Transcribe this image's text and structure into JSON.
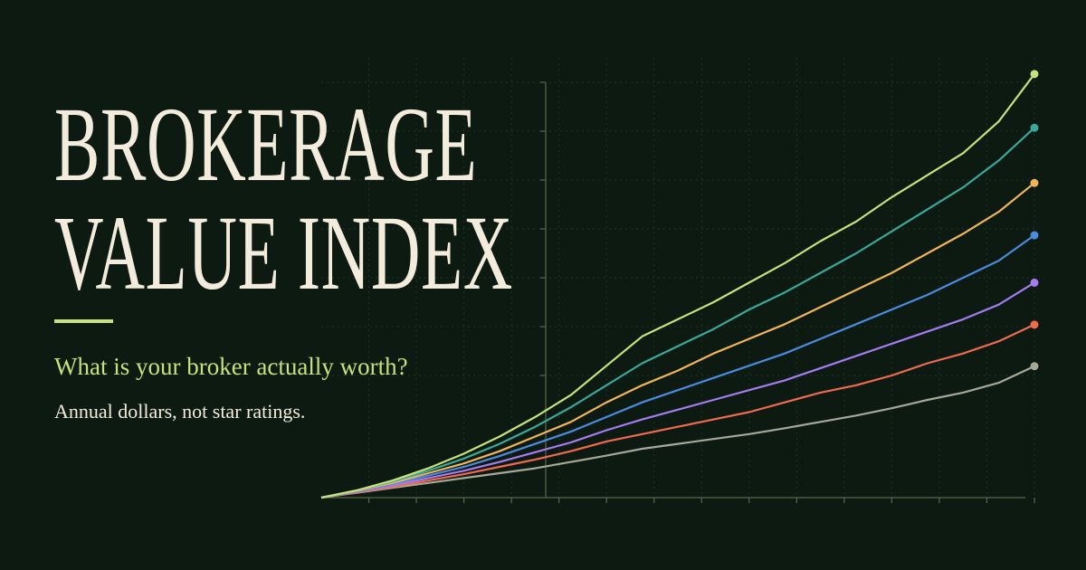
{
  "title": "BROKERAGE VALUE INDEX",
  "subtitle": "What is your broker actually worth?",
  "tagline": "Annual dollars, not star ratings.",
  "chart_data": {
    "type": "line",
    "x": [
      0,
      0.75,
      1.5,
      2.25,
      3,
      3.75,
      4.5,
      5.25,
      6,
      6.75,
      7.5,
      8.25,
      9,
      9.75,
      10.5,
      11.25,
      12,
      12.75,
      13.5,
      14.25,
      15
    ],
    "xlim": [
      0,
      15
    ],
    "xticks": [
      1,
      2,
      3,
      4,
      5,
      6,
      7,
      8,
      9,
      10,
      11,
      12,
      13,
      14,
      15
    ],
    "ylim": [
      0,
      90
    ],
    "yticks": [
      25,
      35,
      45,
      55,
      65,
      75,
      85
    ],
    "grid": true,
    "series": [
      {
        "color": "#c6e27a",
        "values": [
          0,
          1.5,
          3.5,
          6,
          9,
          12.5,
          16.5,
          21,
          27,
          33,
          36.5,
          40,
          44,
          48,
          52.5,
          56.5,
          61.5,
          66,
          70.5,
          77,
          86.7
        ]
      },
      {
        "color": "#3aa89a",
        "values": [
          0,
          1.5,
          3.3,
          5.5,
          8,
          11,
          14.5,
          18.5,
          23,
          27.5,
          31,
          34.5,
          38.5,
          42,
          46,
          50,
          54.5,
          59,
          63.5,
          69,
          75.7
        ]
      },
      {
        "color": "#f0b45a",
        "values": [
          0,
          1.4,
          3,
          5,
          7,
          9.5,
          12.5,
          15.5,
          19.5,
          23,
          26,
          29.5,
          32.5,
          35.5,
          39,
          42.5,
          46,
          50,
          54,
          58.5,
          64.4
        ]
      },
      {
        "color": "#4a8be0",
        "values": [
          0,
          1.3,
          2.8,
          4.5,
          6.3,
          8.5,
          11,
          13.5,
          16.5,
          19.5,
          22,
          24.5,
          27,
          29.5,
          32.5,
          35.5,
          38.5,
          41.5,
          45,
          48.5,
          53.7
        ]
      },
      {
        "color": "#a57cf0",
        "values": [
          0,
          1.2,
          2.5,
          4,
          5.5,
          7.3,
          9.3,
          11.3,
          13.8,
          16,
          18,
          20,
          22,
          24,
          26.5,
          29,
          31.5,
          34,
          36.5,
          39.5,
          44
        ]
      },
      {
        "color": "#f06a4f",
        "values": [
          0,
          1.1,
          2.2,
          3.5,
          4.8,
          6.3,
          7.8,
          9.5,
          11.5,
          13,
          14.5,
          16,
          17.5,
          19.5,
          21.5,
          23,
          25,
          27.5,
          29.5,
          32,
          35.4
        ]
      },
      {
        "color": "#a8a89a",
        "values": [
          0,
          1,
          2,
          3,
          4,
          5,
          6,
          7.3,
          8.6,
          10,
          11,
          12,
          13,
          14.2,
          15.5,
          16.8,
          18.3,
          20,
          21.5,
          23.5,
          26.9
        ]
      }
    ]
  }
}
